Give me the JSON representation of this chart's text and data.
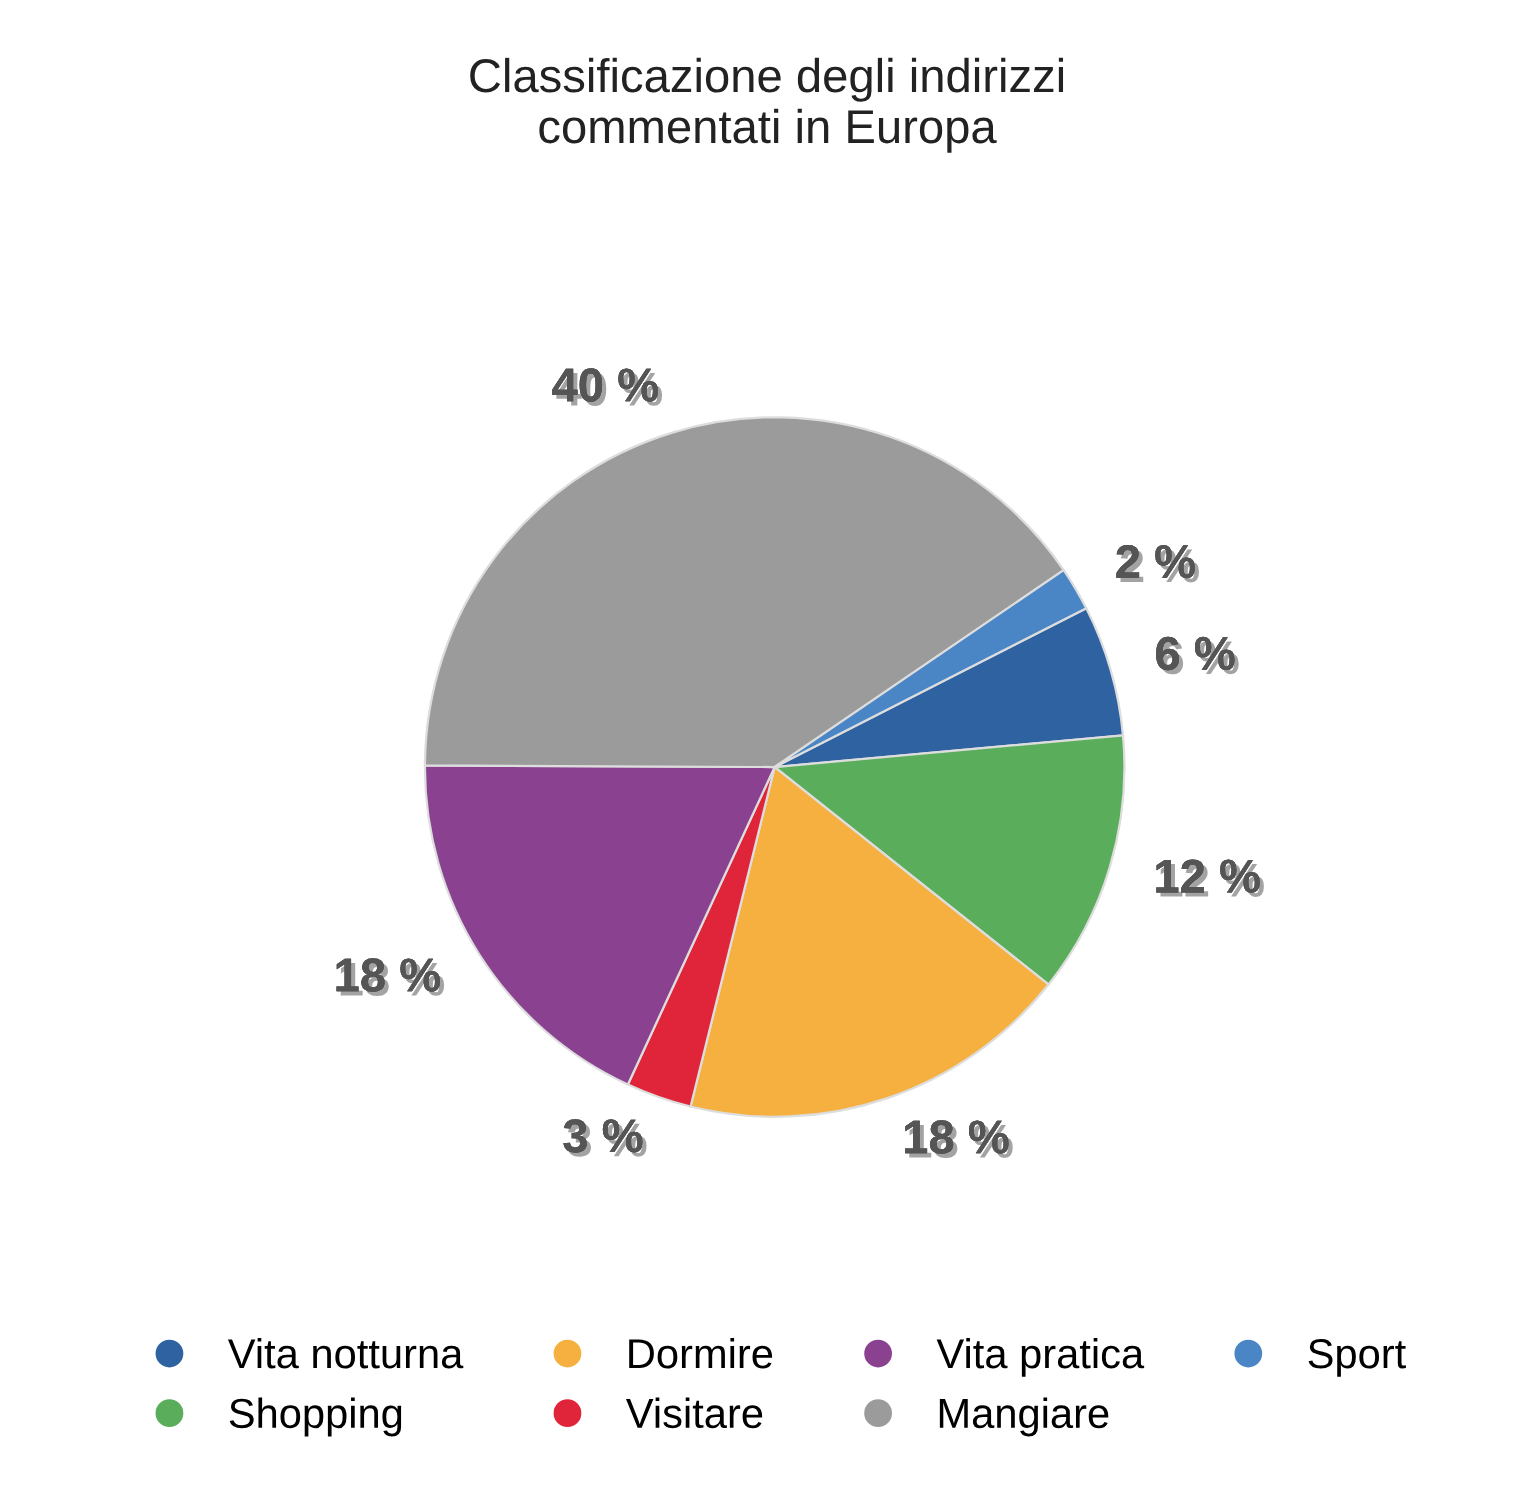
{
  "chart_data": {
    "type": "pie",
    "title": "Classificazione degli indirizzi\ncommentati in Europa",
    "categories": [
      "Vita notturna",
      "Shopping",
      "Dormire",
      "Visitare",
      "Vita pratica",
      "Mangiare",
      "Sport"
    ],
    "values": [
      6,
      12,
      18,
      3,
      18,
      40,
      2
    ],
    "value_labels": [
      "6 %",
      "12 %",
      "18 %",
      "3 %",
      "18 %",
      "40 %",
      "2 %"
    ],
    "colors": [
      "#2e62a0",
      "#5aad5a",
      "#f5b03f",
      "#e0253a",
      "#8a4290",
      "#9b9b9b",
      "#4a86c5"
    ],
    "legend": "bottom"
  }
}
